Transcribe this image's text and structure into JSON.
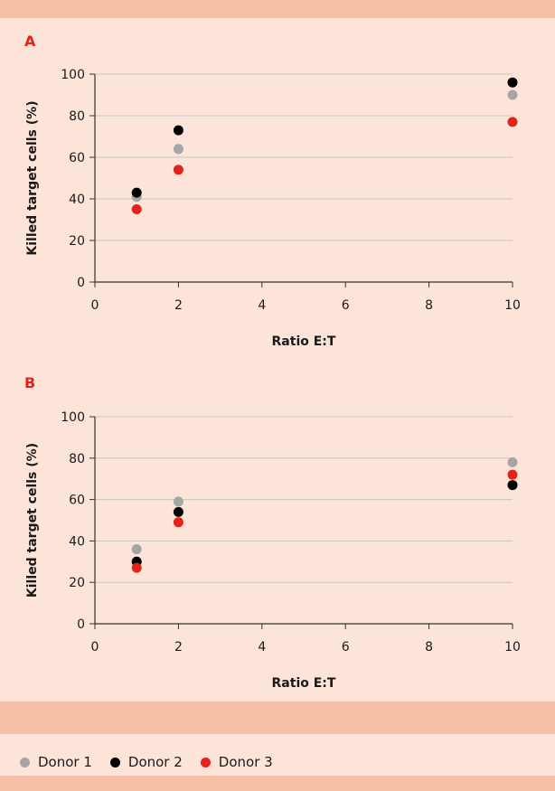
{
  "panels": {
    "a": {
      "label": "A"
    },
    "b": {
      "label": "B"
    }
  },
  "legend": [
    {
      "name": "Donor 1",
      "color": "#a5a5a5"
    },
    {
      "name": "Donor 2",
      "color": "#000000"
    },
    {
      "name": "Donor 3",
      "color": "#e32219"
    }
  ],
  "chart_data": [
    {
      "type": "scatter",
      "title": "A",
      "xlabel": "Ratio E:T",
      "ylabel": "Killed target cells (%)",
      "xlim": [
        0,
        10
      ],
      "ylim": [
        0,
        100
      ],
      "xticks": [
        0,
        2,
        4,
        6,
        8,
        10
      ],
      "yticks": [
        0,
        20,
        40,
        60,
        80,
        100
      ],
      "grid": "horizontal",
      "series": [
        {
          "name": "Donor 1",
          "color": "#a5a5a5",
          "points": [
            [
              1,
              41
            ],
            [
              2,
              64
            ],
            [
              10,
              90
            ]
          ]
        },
        {
          "name": "Donor 2",
          "color": "#000000",
          "points": [
            [
              1,
              43
            ],
            [
              2,
              73
            ],
            [
              10,
              96
            ]
          ]
        },
        {
          "name": "Donor 3",
          "color": "#e32219",
          "points": [
            [
              1,
              35
            ],
            [
              2,
              54
            ],
            [
              10,
              77
            ]
          ]
        }
      ]
    },
    {
      "type": "scatter",
      "title": "B",
      "xlabel": "Ratio E:T",
      "ylabel": "Killed target cells (%)",
      "xlim": [
        0,
        10
      ],
      "ylim": [
        0,
        100
      ],
      "xticks": [
        0,
        2,
        4,
        6,
        8,
        10
      ],
      "yticks": [
        0,
        20,
        40,
        60,
        80,
        100
      ],
      "grid": "horizontal",
      "series": [
        {
          "name": "Donor 1",
          "color": "#a5a5a5",
          "points": [
            [
              1,
              36
            ],
            [
              2,
              59
            ],
            [
              10,
              78
            ]
          ]
        },
        {
          "name": "Donor 2",
          "color": "#000000",
          "points": [
            [
              1,
              30
            ],
            [
              2,
              54
            ],
            [
              10,
              67
            ]
          ]
        },
        {
          "name": "Donor 3",
          "color": "#e32219",
          "points": [
            [
              1,
              27
            ],
            [
              2,
              49
            ],
            [
              10,
              72
            ]
          ]
        }
      ]
    }
  ]
}
